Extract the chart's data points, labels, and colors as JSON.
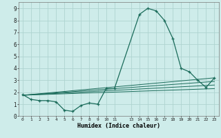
{
  "title": "",
  "xlabel": "Humidex (Indice chaleur)",
  "ylabel": "",
  "background_color": "#ceecea",
  "grid_color": "#aed4d0",
  "line_color": "#1a6b5a",
  "ylim": [
    0,
    9.5
  ],
  "xlim": [
    -0.5,
    23.5
  ],
  "yticks": [
    0,
    1,
    2,
    3,
    4,
    5,
    6,
    7,
    8,
    9
  ],
  "xticks": [
    0,
    1,
    2,
    3,
    4,
    5,
    6,
    7,
    8,
    9,
    10,
    11,
    13,
    14,
    15,
    16,
    17,
    18,
    19,
    20,
    21,
    22,
    23
  ],
  "x_tick_labels": [
    "0",
    "1",
    "2",
    "3",
    "4",
    "5",
    "6",
    "7",
    "8",
    "9",
    "10",
    "11",
    "13",
    "14",
    "15",
    "16",
    "17",
    "18",
    "19",
    "20",
    "21",
    "22",
    "23"
  ],
  "series1_x": [
    0,
    1,
    2,
    3,
    4,
    5,
    6,
    7,
    8,
    9,
    10,
    11,
    14,
    15,
    16,
    17,
    18,
    19,
    20,
    21,
    22,
    23
  ],
  "series1_y": [
    1.8,
    1.4,
    1.3,
    1.3,
    1.2,
    0.5,
    0.4,
    0.9,
    1.1,
    1.0,
    2.3,
    2.3,
    8.5,
    9.0,
    8.8,
    8.0,
    6.5,
    4.0,
    3.7,
    3.0,
    2.4,
    3.2
  ],
  "series2_x": [
    0,
    23
  ],
  "series2_y": [
    1.75,
    2.6
  ],
  "series3_x": [
    0,
    23
  ],
  "series3_y": [
    1.75,
    2.9
  ],
  "series4_x": [
    0,
    23
  ],
  "series4_y": [
    1.75,
    3.2
  ],
  "series5_x": [
    0,
    23
  ],
  "series5_y": [
    1.75,
    2.3
  ]
}
